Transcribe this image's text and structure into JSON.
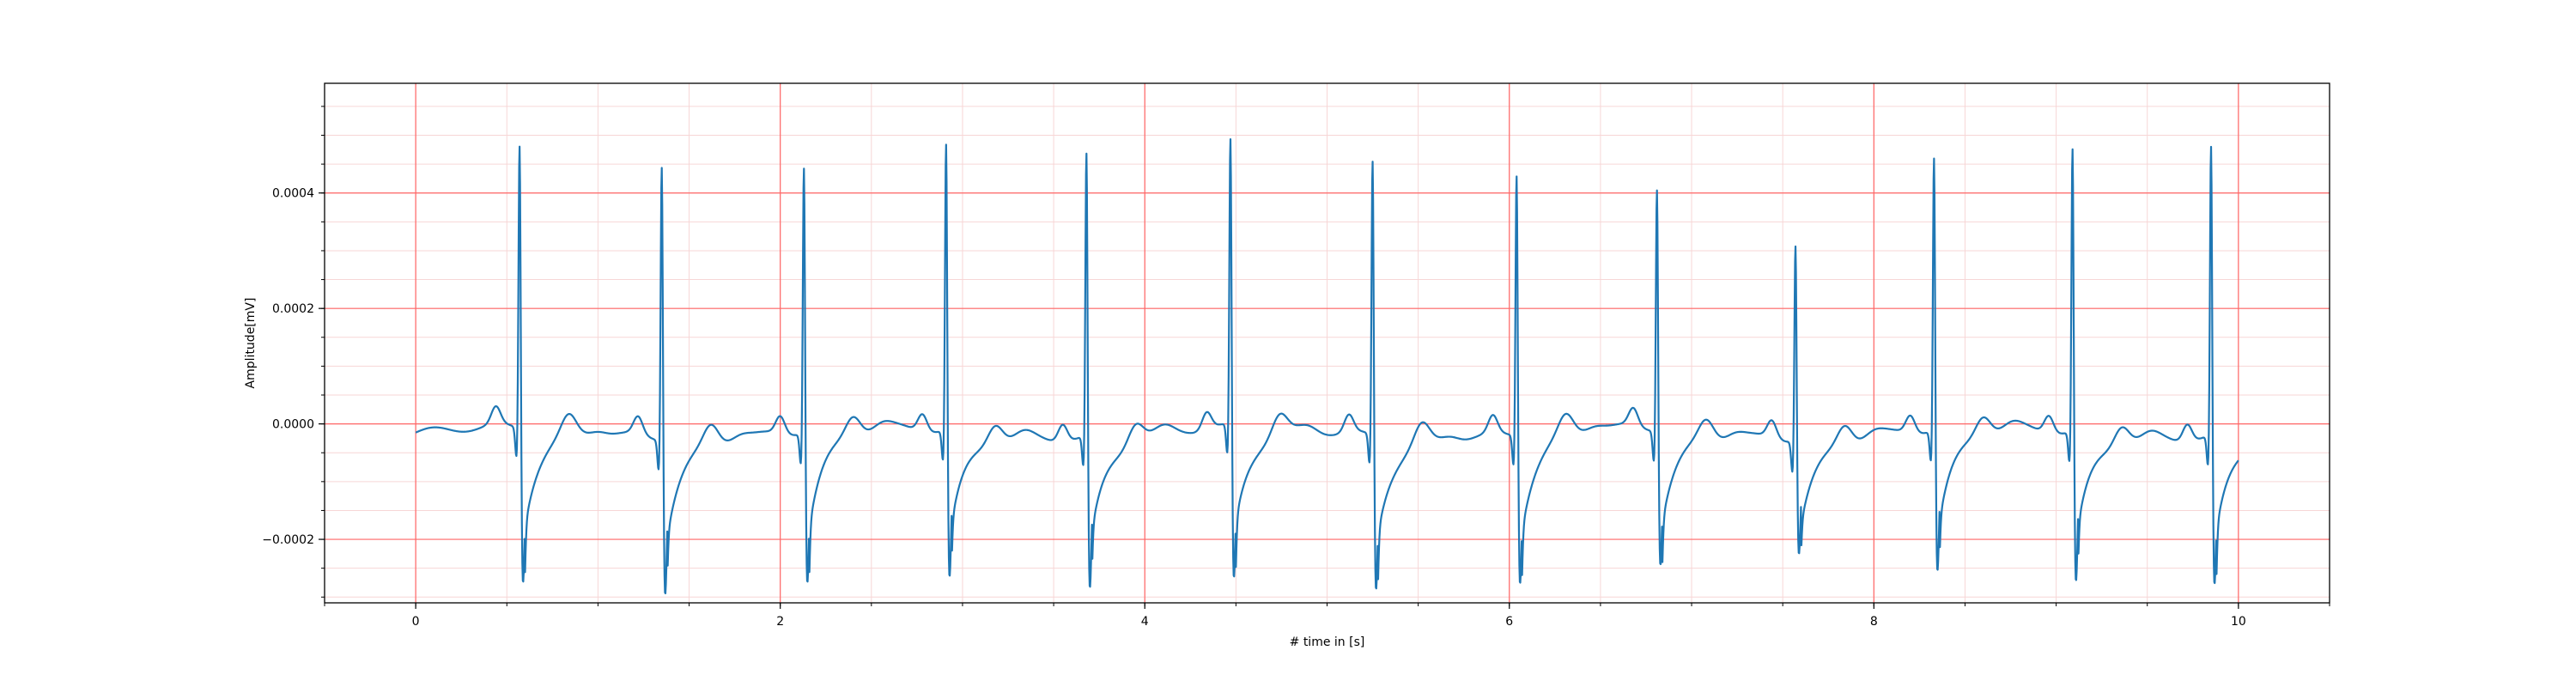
{
  "chart_data": {
    "type": "line",
    "xlabel": "# time in [s]",
    "ylabel": "Amplitude[mV]",
    "xlim": [
      -0.5,
      10.5
    ],
    "ylim": [
      -0.00031,
      0.00059
    ],
    "x_ticks": [
      0,
      2,
      4,
      6,
      8,
      10
    ],
    "x_tick_labels": [
      "0",
      "2",
      "4",
      "6",
      "8",
      "10"
    ],
    "y_ticks": [
      -0.0002,
      0.0,
      0.0002,
      0.0004
    ],
    "y_tick_labels": [
      "−0.0002",
      "0.0000",
      "0.0002",
      "0.0004"
    ],
    "grid": true,
    "minor_grid": true,
    "grid_color": "#ff6666",
    "minor_grid_color": "#f7d6d6",
    "line_color": "#1f77b4",
    "signal": {
      "baseline": [
        [
          0.0,
          -1.5e-05
        ],
        [
          10.0,
          -1.5e-05
        ]
      ],
      "beats": [
        {
          "t": 0.57,
          "peak": 0.000535,
          "trough": -0.00027
        },
        {
          "t": 1.35,
          "peak": 0.00052,
          "trough": -0.00027
        },
        {
          "t": 2.13,
          "peak": 0.000505,
          "trough": -0.000265
        },
        {
          "t": 2.91,
          "peak": 0.00054,
          "trough": -0.00026
        },
        {
          "t": 3.68,
          "peak": 0.000535,
          "trough": -0.00027
        },
        {
          "t": 4.47,
          "peak": 0.00054,
          "trough": -0.00027
        },
        {
          "t": 5.25,
          "peak": 0.00052,
          "trough": -0.00027
        },
        {
          "t": 6.04,
          "peak": 0.000495,
          "trough": -0.00026
        },
        {
          "t": 6.81,
          "peak": 0.00046,
          "trough": -0.000235
        },
        {
          "t": 7.57,
          "peak": 0.000375,
          "trough": -0.0002
        },
        {
          "t": 8.33,
          "peak": 0.000515,
          "trough": -0.00025
        },
        {
          "t": 9.09,
          "peak": 0.000535,
          "trough": -0.000265
        },
        {
          "t": 9.85,
          "peak": 0.000545,
          "trough": -0.000265
        }
      ]
    }
  }
}
